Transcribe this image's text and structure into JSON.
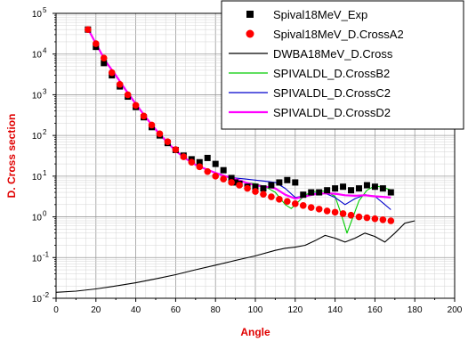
{
  "chart_data": {
    "type": "line",
    "title": "",
    "xlabel": "Angle",
    "ylabel": "D. Cross section",
    "xlim": [
      0,
      200
    ],
    "ylim": [
      0.01,
      100000
    ],
    "yscale": "log",
    "grid": true,
    "legend_position": "top-right",
    "x_ticks": [
      0,
      20,
      40,
      60,
      80,
      100,
      120,
      140,
      160,
      180,
      200
    ],
    "x_tick_labels": [
      "0",
      "20",
      "40",
      "60",
      "80",
      "100",
      "120",
      "140",
      "160",
      "180",
      "200"
    ],
    "y_ticks": [
      0.01,
      0.1,
      1,
      10,
      100,
      1000,
      10000,
      100000
    ],
    "y_tick_labels": [
      {
        "base": "10",
        "exp": "-2"
      },
      {
        "base": "10",
        "exp": "-1"
      },
      {
        "base": "10",
        "exp": "0"
      },
      {
        "base": "10",
        "exp": "1"
      },
      {
        "base": "10",
        "exp": "2"
      },
      {
        "base": "10",
        "exp": "3"
      },
      {
        "base": "10",
        "exp": "4"
      },
      {
        "base": "10",
        "exp": "5"
      }
    ],
    "series": [
      {
        "name": "Spival18MeV_Exp",
        "kind": "marker-square",
        "color": "#000000",
        "x": [
          16,
          20,
          24,
          28,
          32,
          36,
          40,
          44,
          48,
          52,
          56,
          60,
          64,
          68,
          72,
          76,
          80,
          84,
          88,
          90,
          92,
          96,
          100,
          104,
          108,
          112,
          116,
          120,
          124,
          128,
          132,
          136,
          140,
          144,
          148,
          152,
          156,
          160,
          164,
          168
        ],
        "y": [
          40000,
          15000,
          6000,
          3000,
          1600,
          900,
          500,
          280,
          160,
          100,
          65,
          44,
          32,
          26,
          22,
          28,
          20,
          14,
          9,
          7,
          6.5,
          5.5,
          5.5,
          5,
          6,
          7,
          8,
          7,
          3.5,
          4,
          4,
          4.5,
          5,
          5.5,
          4.5,
          5,
          6,
          5.5,
          5,
          4
        ]
      },
      {
        "name": "Spival18MeV_D.CrossA2",
        "kind": "marker-circle",
        "color": "#ff0000",
        "x": [
          16,
          20,
          24,
          28,
          32,
          36,
          40,
          44,
          48,
          52,
          56,
          60,
          64,
          68,
          72,
          76,
          80,
          84,
          88,
          92,
          96,
          100,
          104,
          108,
          112,
          116,
          120,
          124,
          128,
          132,
          136,
          140,
          144,
          148,
          152,
          156,
          160,
          164,
          168
        ],
        "y": [
          40000,
          18000,
          8000,
          3500,
          1800,
          1000,
          550,
          300,
          180,
          110,
          70,
          45,
          30,
          22,
          17,
          13,
          10,
          8.5,
          7,
          6,
          5,
          4.2,
          3.6,
          3.1,
          2.7,
          2.4,
          2.1,
          1.9,
          1.7,
          1.55,
          1.4,
          1.3,
          1.2,
          1.1,
          1.0,
          0.95,
          0.9,
          0.85,
          0.8
        ]
      },
      {
        "name": "DWBA18MeV_D.Cross",
        "kind": "line",
        "color": "#000000",
        "x": [
          0,
          10,
          20,
          30,
          40,
          50,
          60,
          70,
          80,
          90,
          100,
          110,
          115,
          120,
          125,
          130,
          135,
          140,
          145,
          150,
          155,
          160,
          165,
          170,
          175,
          180
        ],
        "y": [
          0.014,
          0.015,
          0.017,
          0.02,
          0.024,
          0.03,
          0.038,
          0.05,
          0.065,
          0.085,
          0.11,
          0.15,
          0.17,
          0.18,
          0.2,
          0.26,
          0.35,
          0.3,
          0.24,
          0.3,
          0.4,
          0.33,
          0.24,
          0.4,
          0.7,
          0.8
        ]
      },
      {
        "name": "SPIVALDL_D.CrossB2",
        "kind": "line",
        "color": "#00cc00",
        "x": [
          16,
          20,
          25,
          30,
          35,
          40,
          45,
          50,
          55,
          60,
          65,
          70,
          75,
          80,
          85,
          90,
          95,
          100,
          105,
          110,
          115,
          118,
          121,
          125,
          130,
          135,
          140,
          143,
          146,
          149,
          152,
          156,
          160,
          164,
          168
        ],
        "y": [
          42000,
          18000,
          6500,
          3000,
          1300,
          600,
          280,
          140,
          75,
          42,
          27,
          19,
          15,
          12,
          10,
          8.5,
          7,
          6.5,
          5.5,
          4,
          2,
          1.6,
          2.2,
          3.5,
          4.2,
          4.3,
          3.2,
          1.2,
          0.4,
          1.0,
          2.5,
          4.5,
          5.8,
          5.3,
          4.6
        ]
      },
      {
        "name": "SPIVALDL_D.CrossC2",
        "kind": "line",
        "color": "#0000cc",
        "x": [
          16,
          20,
          25,
          30,
          35,
          40,
          45,
          50,
          55,
          60,
          65,
          70,
          75,
          80,
          85,
          90,
          95,
          100,
          105,
          110,
          115,
          120,
          125,
          130,
          135,
          140,
          145,
          150,
          155,
          160,
          164,
          168
        ],
        "y": [
          42000,
          18000,
          6500,
          3000,
          1300,
          600,
          280,
          140,
          75,
          42,
          27,
          19,
          15,
          12,
          10,
          9,
          8.5,
          8,
          7.5,
          7,
          5,
          3,
          3.3,
          3.8,
          3.8,
          3,
          2,
          2.8,
          3.5,
          3.2,
          2.2,
          1.5
        ]
      },
      {
        "name": "SPIVALDL_D.CrossD2",
        "kind": "line-thick",
        "color": "#ff00ff",
        "x": [
          16,
          20,
          25,
          30,
          35,
          40,
          45,
          50,
          55,
          60,
          65,
          70,
          75,
          80,
          85,
          90,
          95,
          100,
          105,
          110,
          115,
          120,
          125,
          130,
          135,
          140,
          145,
          150,
          155,
          160,
          164,
          168
        ],
        "y": [
          42000,
          18000,
          6500,
          3000,
          1300,
          600,
          280,
          140,
          75,
          42,
          27,
          19,
          15,
          12,
          10,
          8.5,
          7,
          6,
          5.5,
          5,
          3.5,
          2.8,
          3.2,
          3.6,
          3.8,
          3.7,
          3.4,
          3.3,
          3.4,
          3.2,
          3.1,
          3.0
        ]
      }
    ]
  }
}
